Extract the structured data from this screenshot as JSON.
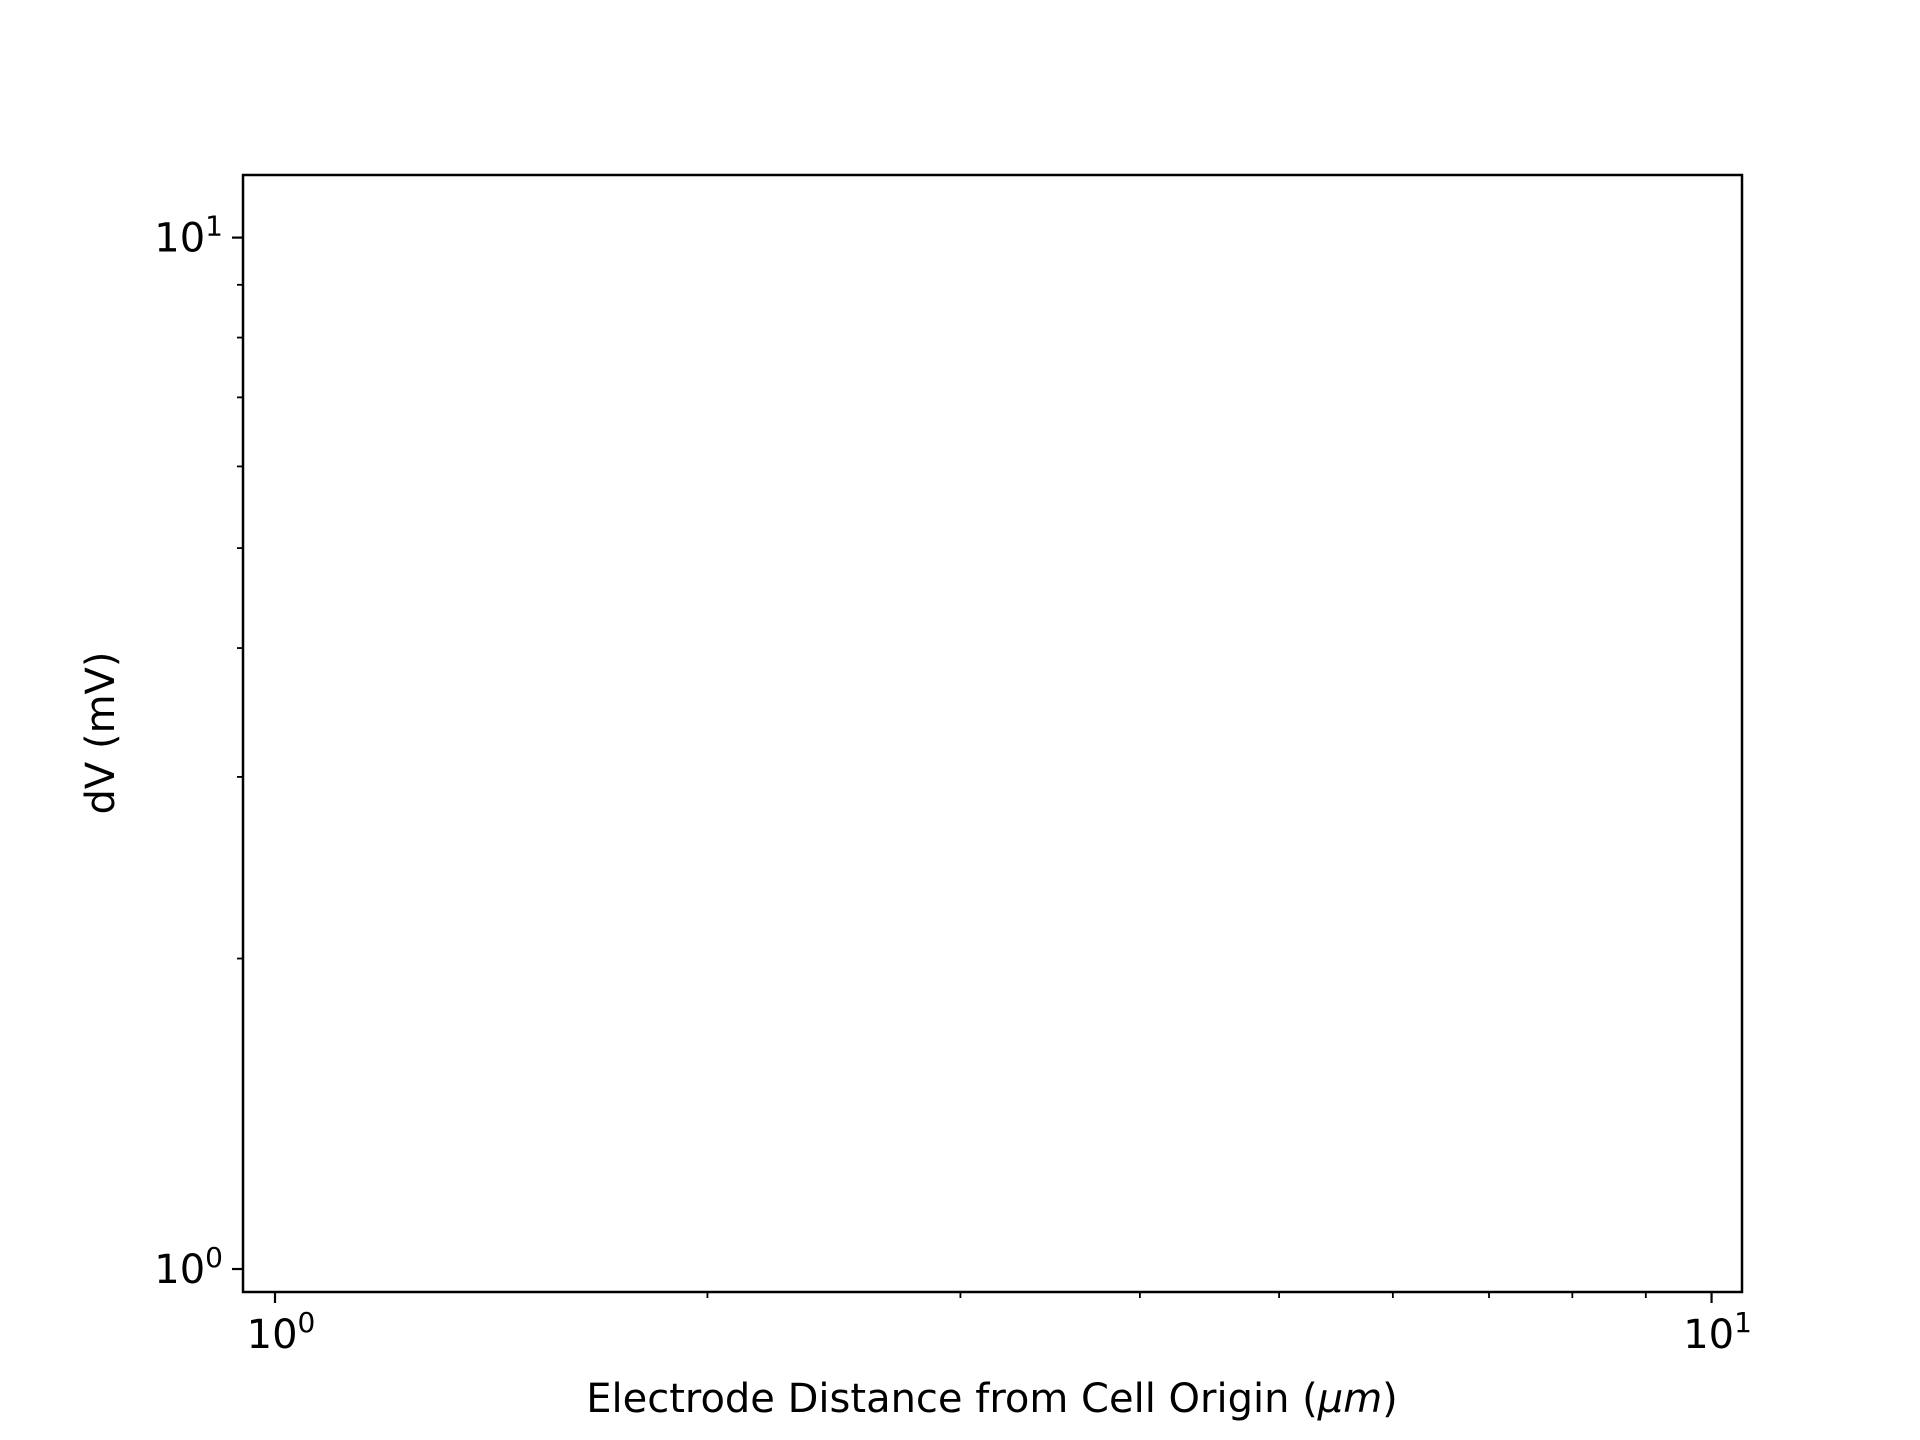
{
  "chart_data": {
    "type": "line",
    "title": "",
    "xlabel": "Electrode Distance from Cell Origin (μm)",
    "xlabel_parts": {
      "prefix": "Electrode Distance from Cell Origin (",
      "unit": "μm",
      "suffix": ")"
    },
    "ylabel": "dV (mV)",
    "xscale": "log",
    "yscale": "log",
    "xlim": [
      0.95,
      10.5
    ],
    "ylim": [
      0.95,
      11.5
    ],
    "x_ticks": [
      {
        "value": 1,
        "base": "10",
        "exp": "0"
      },
      {
        "value": 10,
        "base": "10",
        "exp": "1"
      }
    ],
    "y_ticks": [
      {
        "value": 1,
        "base": "10",
        "exp": "0"
      },
      {
        "value": 10,
        "base": "10",
        "exp": "1"
      }
    ],
    "series": [],
    "grid": false,
    "legend": "none",
    "colors": {
      "axes": "#000000",
      "background": "#ffffff"
    }
  }
}
